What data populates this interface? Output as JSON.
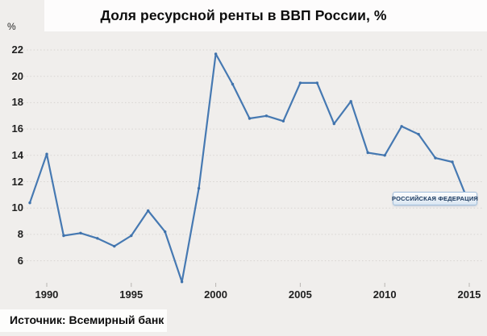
{
  "title": "Доля ресурсной ренты в ВВП России, %",
  "y_axis_unit": "%",
  "source_note": "Источник: Всемирный банк",
  "series_label": "РОССИЙСКАЯ ФЕДЕРАЦИЯ",
  "colors": {
    "line": "#4679b2",
    "marker": "#3f72ab",
    "gridline": "#d7d4d1",
    "tick": "#b8b5b2",
    "axis_text": "#1f1f1f",
    "background": "#f0eeec",
    "chip_text": "#17365d",
    "chip_border": "#a3bfdc"
  },
  "chart_data": {
    "type": "line",
    "title": "Доля ресурсной ренты в ВВП России, %",
    "xlabel": "",
    "ylabel": "%",
    "x": [
      1989,
      1990,
      1991,
      1992,
      1993,
      1994,
      1995,
      1996,
      1997,
      1998,
      1999,
      2000,
      2001,
      2002,
      2003,
      2004,
      2005,
      2006,
      2007,
      2008,
      2009,
      2010,
      2011,
      2012,
      2013,
      2014,
      2015
    ],
    "values": [
      10.4,
      14.1,
      7.9,
      8.1,
      7.7,
      7.1,
      7.9,
      9.8,
      8.2,
      4.4,
      11.5,
      21.7,
      19.4,
      16.8,
      17.0,
      16.6,
      19.5,
      19.5,
      16.4,
      18.1,
      14.2,
      14.0,
      16.2,
      15.6,
      13.8,
      13.5,
      10.3
    ],
    "xticks": [
      1990,
      1995,
      2000,
      2005,
      2010,
      2015
    ],
    "yticks": [
      6,
      8,
      10,
      12,
      14,
      16,
      18,
      20,
      22
    ],
    "ylim": [
      4,
      23
    ],
    "grid": "horizontal-dotted",
    "legend_position": "none",
    "series": [
      {
        "name": "РОССИЙСКАЯ ФЕДЕРАЦИЯ",
        "annotation_attached_to_last_point": true
      }
    ],
    "source": "Источник: Всемирный банк"
  }
}
